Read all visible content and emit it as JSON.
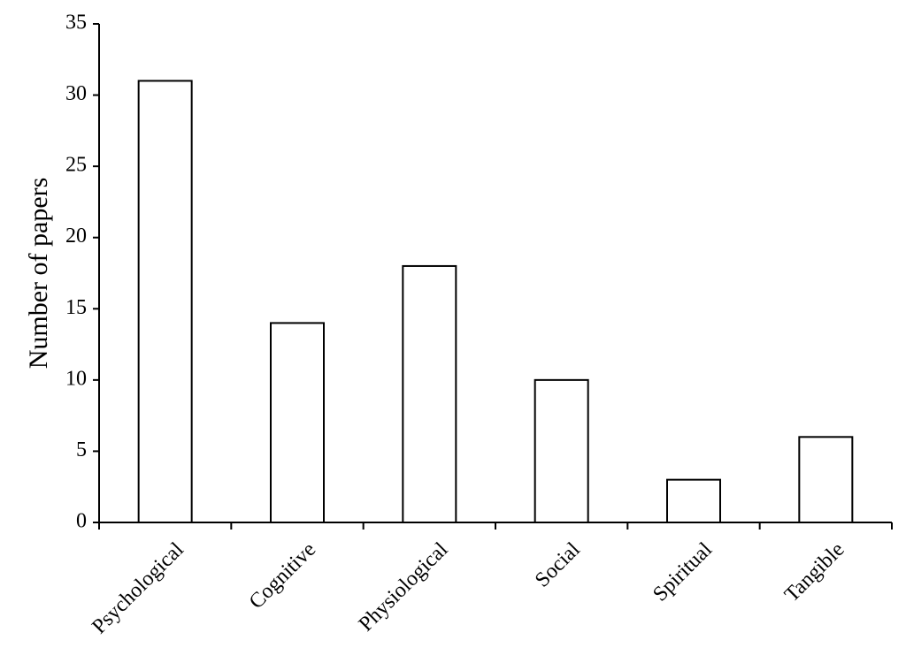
{
  "chart_data": {
    "type": "bar",
    "y_label": "Number of papers",
    "categories": [
      "Psychological",
      "Cognitive",
      "Physiological",
      "Social",
      "Spiritual",
      "Tangible"
    ],
    "values": [
      31,
      14,
      18,
      10,
      3,
      6
    ],
    "color": "#ffffff",
    "edgecolor": "#000000",
    "ylim": [
      0,
      35
    ],
    "yticks": [
      0,
      5,
      10,
      15,
      20,
      25,
      30,
      35
    ],
    "grid": false
  }
}
